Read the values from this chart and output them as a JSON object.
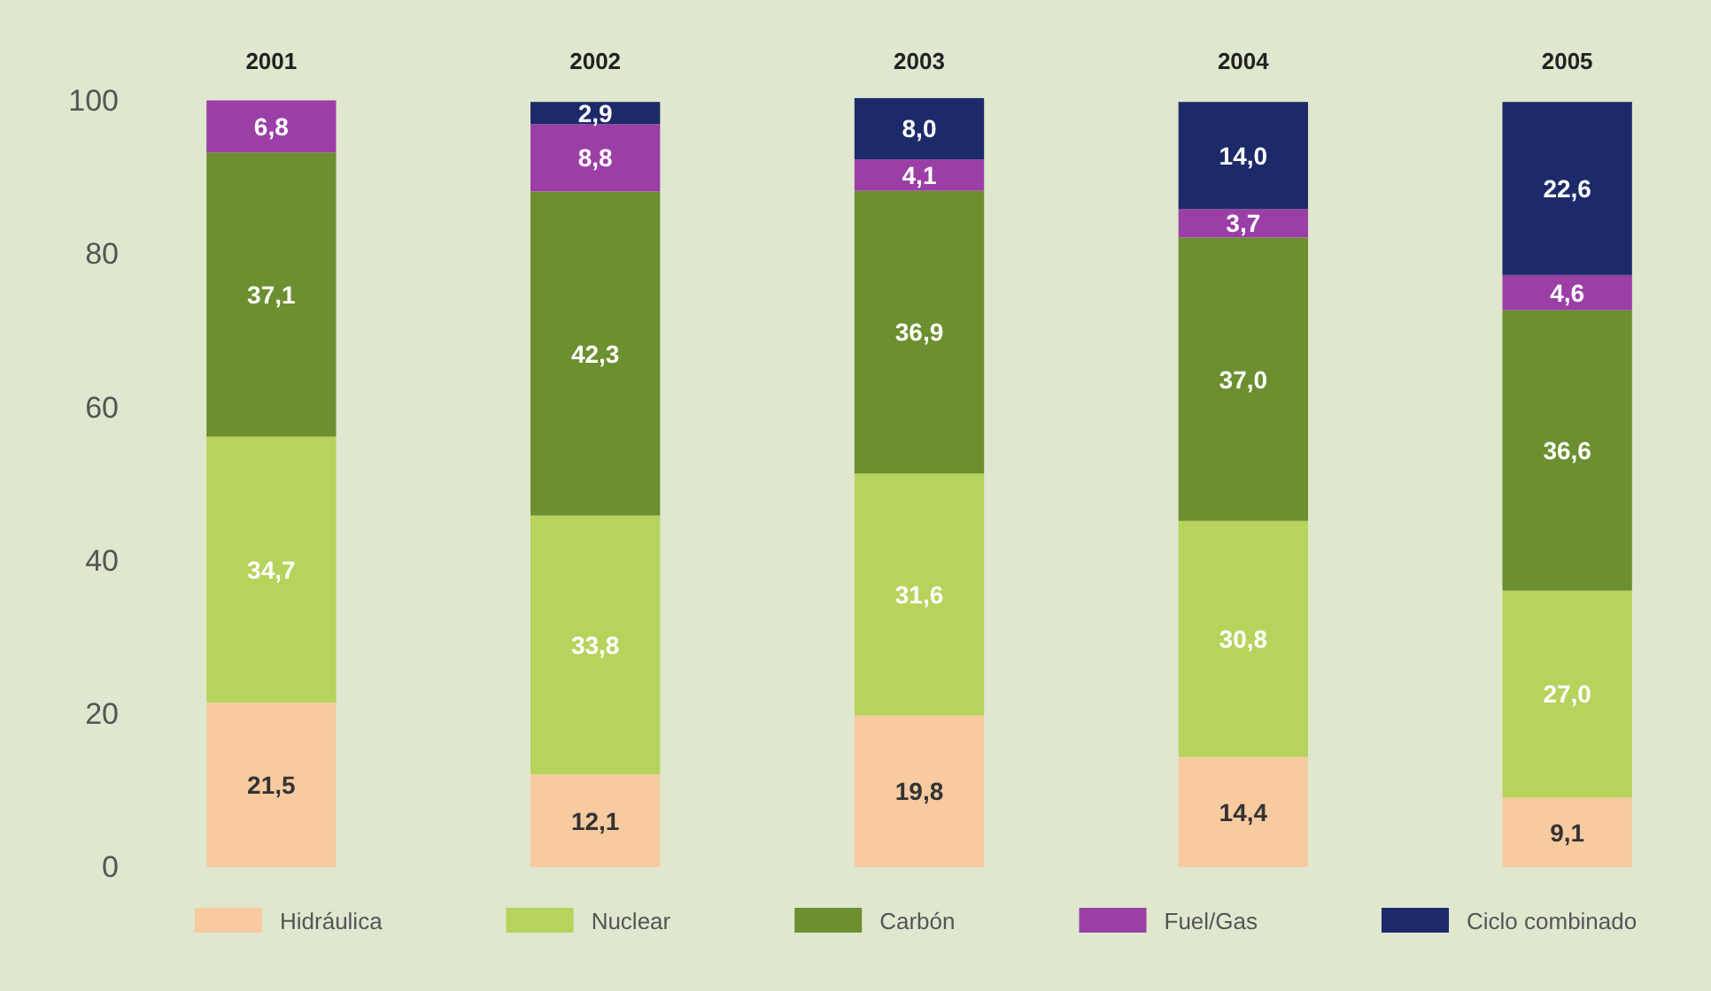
{
  "chart_data": {
    "type": "bar",
    "stacked": true,
    "categories": [
      "2001",
      "2002",
      "2003",
      "2004",
      "2005"
    ],
    "ylim": [
      0,
      100.5
    ],
    "yticks": [
      0,
      20,
      40,
      60,
      80,
      100
    ],
    "grid": false,
    "legend": "bottom",
    "series": [
      {
        "name": "Hidráulica",
        "color": "#f8caa0",
        "values": [
          21.5,
          12.1,
          19.8,
          14.4,
          9.1
        ],
        "value_labels": [
          "21,5",
          "12,1",
          "19,8",
          "14,4",
          "9,1"
        ]
      },
      {
        "name": "Nuclear",
        "color": "#b6d35c",
        "values": [
          34.7,
          33.8,
          31.6,
          30.8,
          27.0
        ],
        "value_labels": [
          "34,7",
          "33,8",
          "31,6",
          "30,8",
          "27,0"
        ]
      },
      {
        "name": "Carbón",
        "color": "#6c8f2f",
        "values": [
          37.1,
          42.3,
          36.9,
          37.0,
          36.6
        ],
        "value_labels": [
          "37,1",
          "42,3",
          "36,9",
          "37,0",
          "36,6"
        ]
      },
      {
        "name": "Fuel/Gas",
        "color": "#9b3fa6",
        "values": [
          6.8,
          8.8,
          4.1,
          3.7,
          4.6
        ],
        "value_labels": [
          "6,8",
          "8,8",
          "4,1",
          "3,7",
          "4,6"
        ]
      },
      {
        "name": "Ciclo combinado",
        "color": "#1d2a6a",
        "values": [
          null,
          2.9,
          8.0,
          14.0,
          22.6
        ],
        "value_labels": [
          null,
          "2,9",
          "8,0",
          "14,0",
          "22,6"
        ]
      }
    ]
  }
}
